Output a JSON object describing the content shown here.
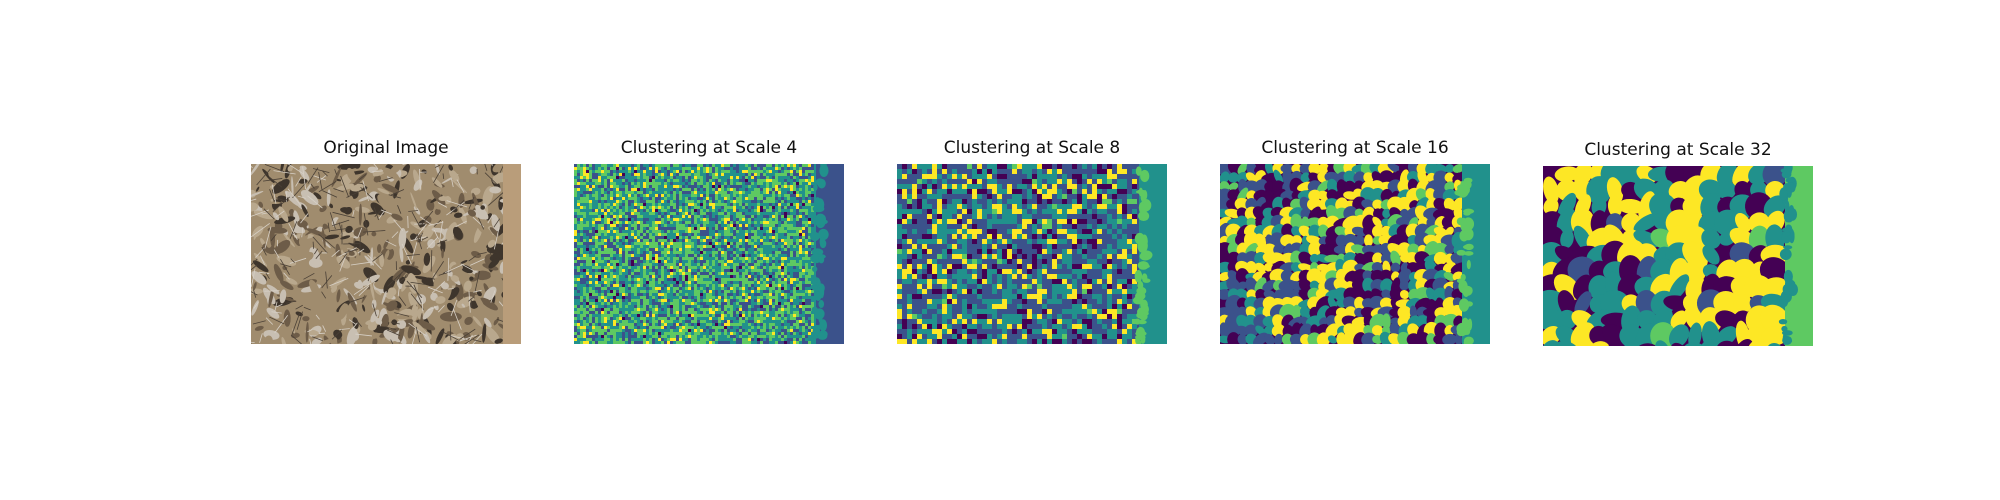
{
  "figure": {
    "panels": [
      {
        "id": "original",
        "title": "Original Image",
        "kind": "photo"
      },
      {
        "id": "scale4",
        "title": "Clustering at Scale 4",
        "kind": "cluster-map"
      },
      {
        "id": "scale8",
        "title": "Clustering at Scale 8",
        "kind": "cluster-map"
      },
      {
        "id": "scale16",
        "title": "Clustering at Scale 16",
        "kind": "cluster-map"
      },
      {
        "id": "scale32",
        "title": "Clustering at Scale 32",
        "kind": "cluster-map"
      }
    ],
    "colormap": [
      "#440154",
      "#3b528b",
      "#21918c",
      "#5ec962",
      "#fde725"
    ],
    "photo_palette": [
      "#a08c6e",
      "#6d5c48",
      "#b9a88d",
      "#3e352c",
      "#c8bfb2"
    ]
  }
}
